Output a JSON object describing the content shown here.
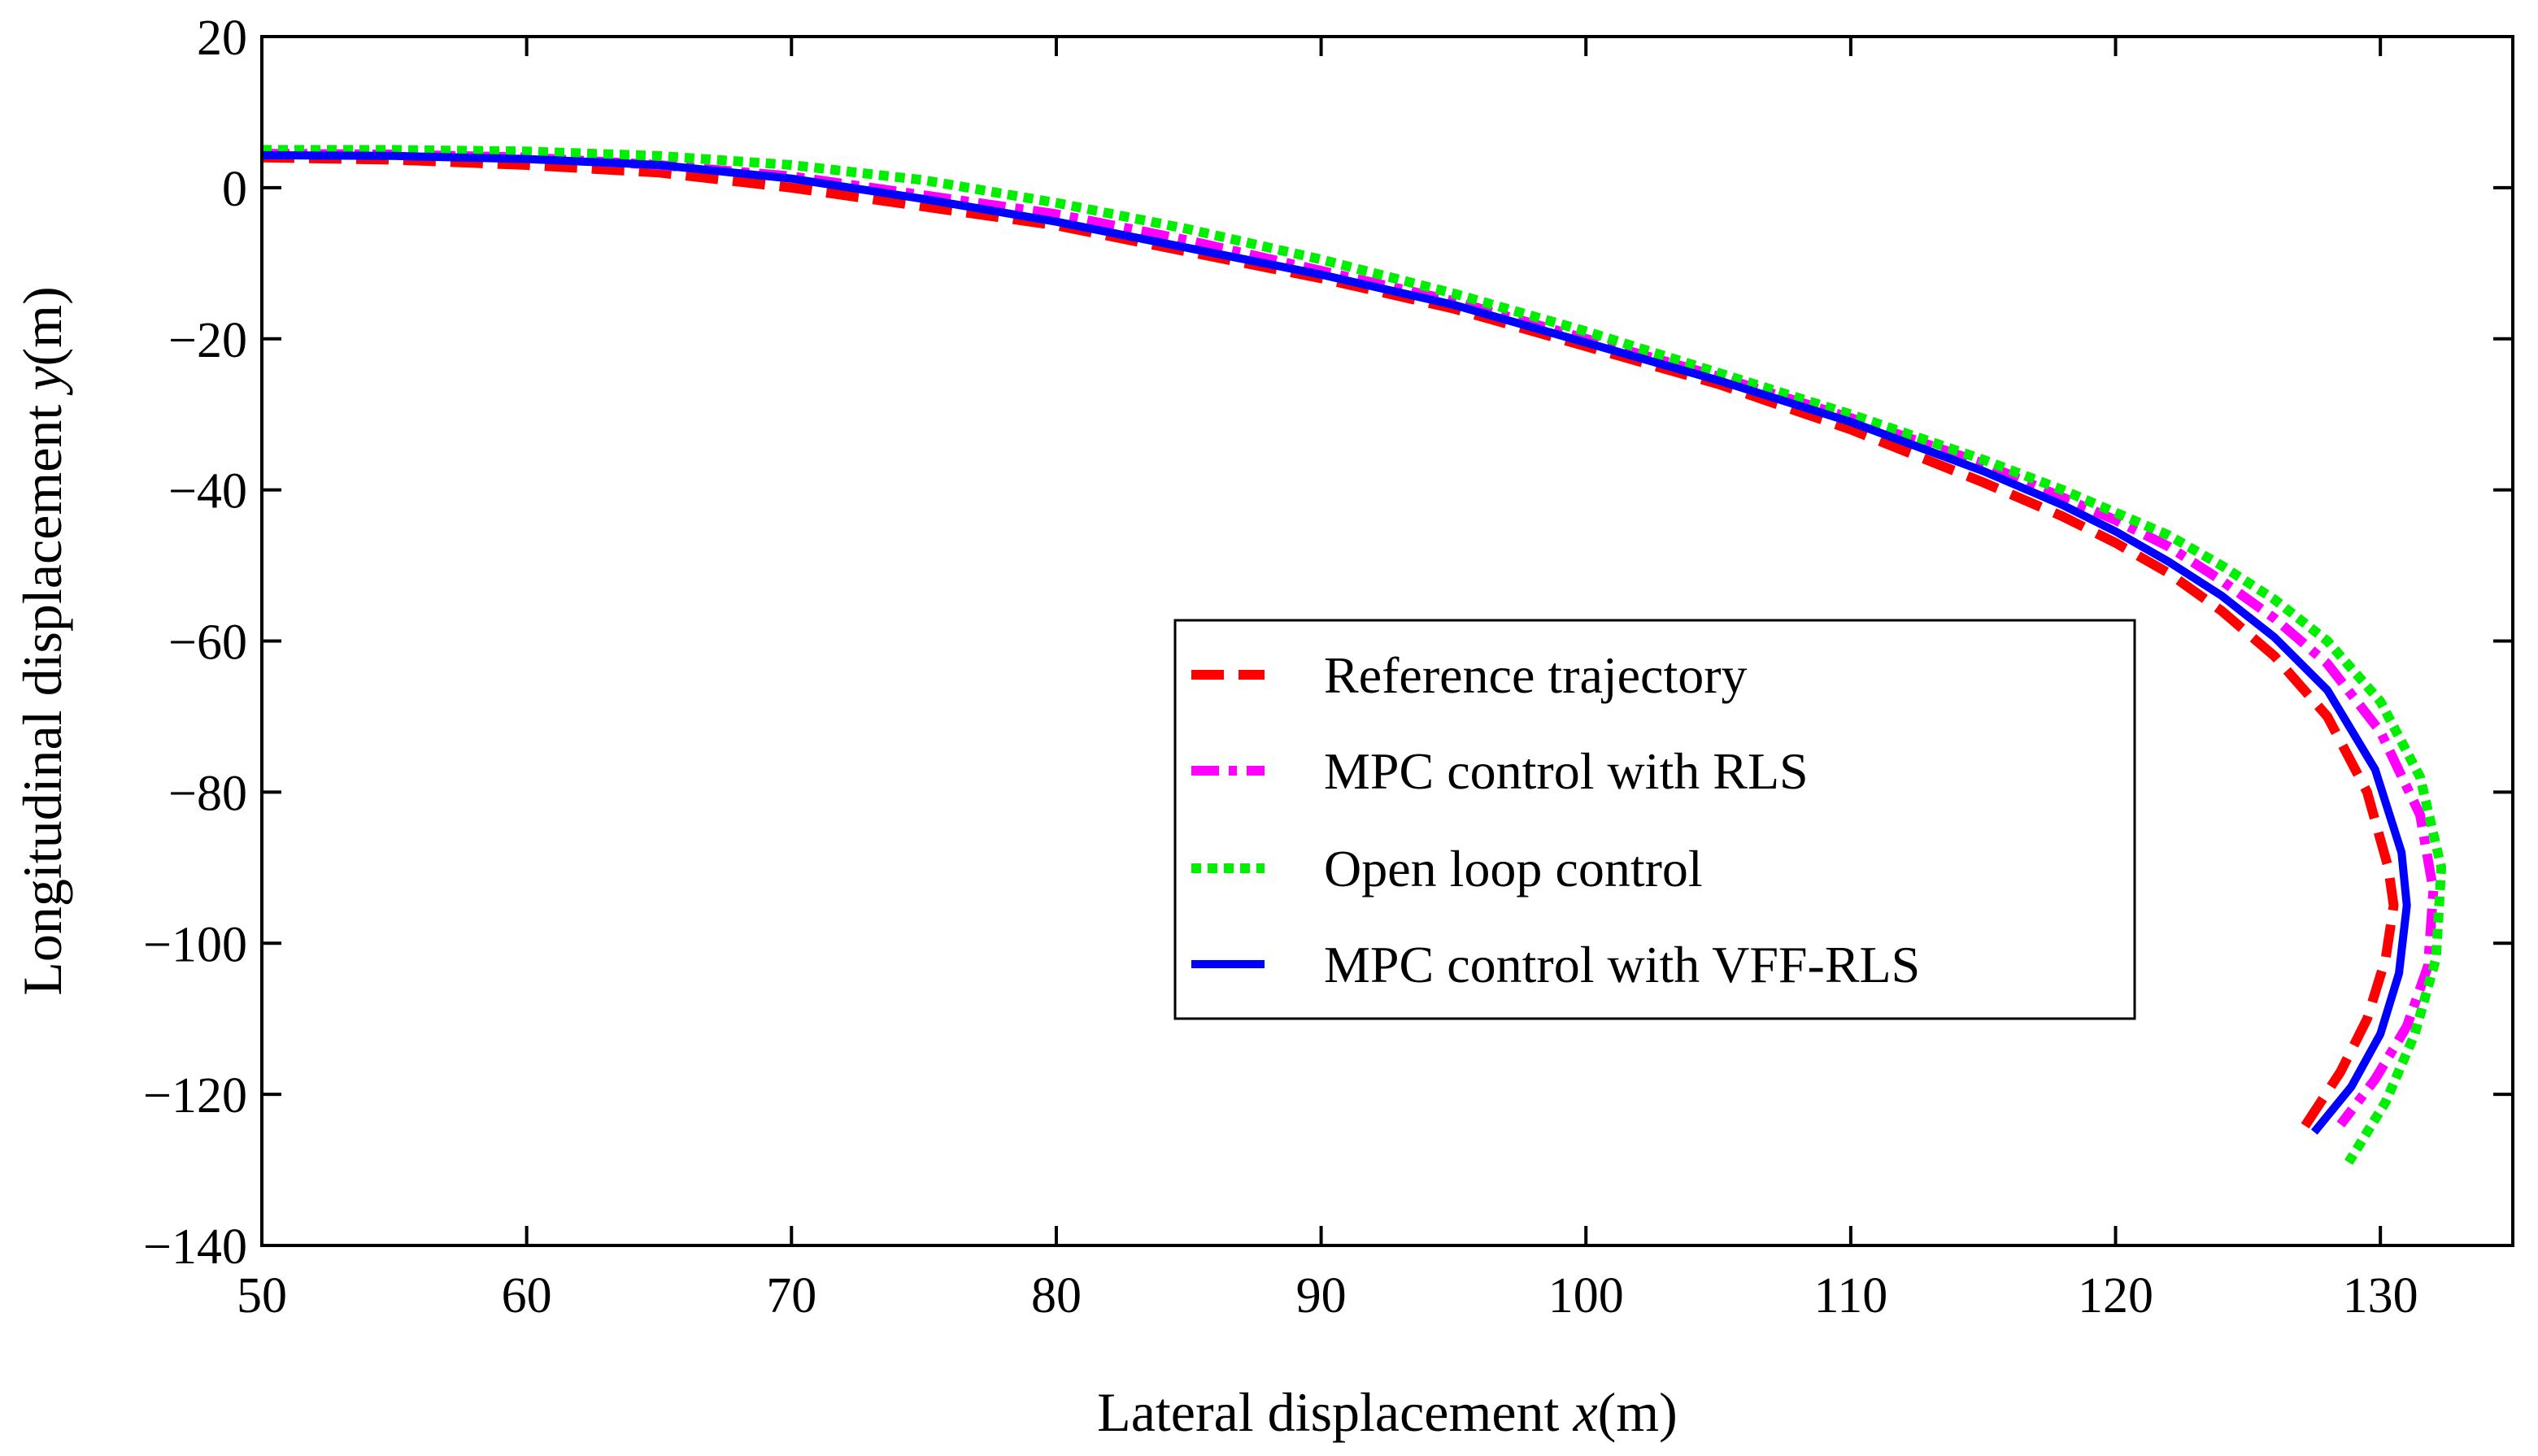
{
  "chart_data": {
    "type": "line",
    "title": "",
    "xlabel_prefix": "Lateral displacement ",
    "xlabel_var": "x",
    "xlabel_unit": "(m)",
    "ylabel_prefix": "Longitudinal displacement ",
    "ylabel_var": "y",
    "ylabel_unit": "(m)",
    "xlim": [
      50,
      135
    ],
    "ylim": [
      -140,
      20
    ],
    "xticks": [
      50,
      60,
      70,
      80,
      90,
      100,
      110,
      120,
      130
    ],
    "yticks": [
      20,
      0,
      -20,
      -40,
      -60,
      -80,
      -100,
      -120,
      -140
    ],
    "xtick_labels": [
      "50",
      "60",
      "70",
      "80",
      "90",
      "100",
      "110",
      "120",
      "130"
    ],
    "ytick_labels": [
      "20",
      "0",
      "−20",
      "−40",
      "−60",
      "−80",
      "−100",
      "−120",
      "−140"
    ],
    "grid": false,
    "legend_position": "center-right",
    "series": [
      {
        "name": "Reference trajectory",
        "color": "#ff0000",
        "style": "dashed",
        "x": [
          50,
          55,
          60,
          65,
          70,
          75,
          80,
          85,
          90,
          95,
          100,
          105,
          110,
          115,
          118,
          120,
          122,
          124,
          126,
          128,
          129.5,
          130.3,
          130.5,
          130.2,
          129.5,
          128.5,
          127.0
        ],
        "y": [
          4,
          3.7,
          3,
          2,
          0,
          -2.5,
          -5,
          -8.5,
          -12,
          -16,
          -21,
          -26,
          -32,
          -39,
          -43.5,
          -47,
          -51,
          -56,
          -62,
          -70,
          -80,
          -90,
          -95,
          -102,
          -110,
          -117,
          -125
        ]
      },
      {
        "name": "MPC control with RLS",
        "color": "#ff00ff",
        "style": "dashdot",
        "x": [
          50,
          55,
          60,
          65,
          70,
          75,
          80,
          85,
          90,
          95,
          100,
          105,
          110,
          115,
          118,
          120,
          122,
          124,
          126,
          128,
          130,
          131.5,
          132.0,
          131.8,
          131.0,
          129.8,
          128.5
        ],
        "y": [
          4.5,
          4.4,
          4,
          3,
          1.5,
          -1,
          -3.5,
          -7,
          -11,
          -15,
          -20,
          -25,
          -30.5,
          -36.5,
          -41,
          -44,
          -47.5,
          -52,
          -57,
          -63,
          -72,
          -83,
          -93,
          -103,
          -111,
          -118,
          -124
        ]
      },
      {
        "name": "Open loop control",
        "color": "#00ee00",
        "style": "dotted",
        "x": [
          50,
          55,
          60,
          65,
          70,
          75,
          80,
          85,
          90,
          95,
          100,
          105,
          110,
          115,
          118,
          120,
          122,
          124,
          126,
          128,
          130,
          131.5,
          132.3,
          132.1,
          131.3,
          130.2,
          128.8
        ],
        "y": [
          5,
          5,
          4.8,
          4.2,
          3,
          1,
          -2,
          -5.5,
          -9.5,
          -14,
          -19,
          -24.5,
          -30,
          -36,
          -40,
          -43,
          -46,
          -50,
          -54.5,
          -60,
          -68,
          -78,
          -90,
          -102,
          -112,
          -121,
          -129
        ]
      },
      {
        "name": "MPC control with VFF-RLS",
        "color": "#0000ff",
        "style": "solid",
        "x": [
          50,
          55,
          60,
          65,
          70,
          75,
          80,
          85,
          90,
          95,
          100,
          105,
          110,
          115,
          118,
          120,
          122,
          124,
          126,
          128,
          129.8,
          130.8,
          131.0,
          130.7,
          130.0,
          128.9,
          127.5
        ],
        "y": [
          4.3,
          4.2,
          3.8,
          3,
          1.2,
          -1.5,
          -4.5,
          -8,
          -11.5,
          -15.5,
          -20.5,
          -25.5,
          -31,
          -37.5,
          -42,
          -45.5,
          -49.5,
          -54,
          -59.5,
          -66.5,
          -77,
          -88,
          -95,
          -104,
          -112,
          -119,
          -125
        ]
      }
    ]
  }
}
